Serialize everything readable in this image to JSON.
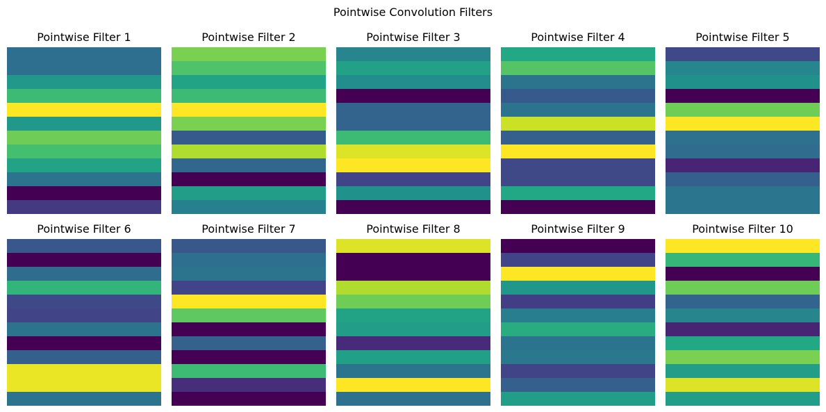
{
  "chart_data": {
    "type": "heatmap",
    "title": "Pointwise Convolution Filters",
    "colormap": "viridis",
    "value_range": [
      0,
      1
    ],
    "axes_visible": false,
    "layout": {
      "rows": 2,
      "cols": 5
    },
    "filters": [
      {
        "title": "Pointwise Filter 1",
        "values": [
          0.36,
          0.36,
          0.53,
          0.68,
          1.0,
          0.53,
          0.78,
          0.7,
          0.58,
          0.38,
          0.0,
          0.17
        ]
      },
      {
        "title": "Pointwise Filter 2",
        "values": [
          0.8,
          0.72,
          0.58,
          0.68,
          1.0,
          0.8,
          0.28,
          0.88,
          0.33,
          0.0,
          0.55,
          0.43
        ]
      },
      {
        "title": "Pointwise Filter 3",
        "values": [
          0.45,
          0.57,
          0.48,
          0.0,
          0.32,
          0.32,
          0.68,
          0.95,
          1.0,
          0.2,
          0.5,
          0.0
        ]
      },
      {
        "title": "Pointwise Filter 4",
        "values": [
          0.6,
          0.73,
          0.38,
          0.28,
          0.38,
          0.92,
          0.3,
          1.0,
          0.22,
          0.22,
          0.6,
          0.0
        ]
      },
      {
        "title": "Pointwise Filter 5",
        "values": [
          0.22,
          0.45,
          0.5,
          0.0,
          0.78,
          1.0,
          0.37,
          0.35,
          0.1,
          0.3,
          0.39,
          0.39
        ]
      },
      {
        "title": "Pointwise Filter 6",
        "values": [
          0.27,
          0.0,
          0.35,
          0.65,
          0.22,
          0.2,
          0.38,
          0.0,
          0.3,
          0.97,
          0.97,
          0.38
        ]
      },
      {
        "title": "Pointwise Filter 7",
        "values": [
          0.27,
          0.36,
          0.38,
          0.2,
          1.0,
          0.75,
          0.0,
          0.31,
          0.0,
          0.68,
          0.13,
          0.0
        ]
      },
      {
        "title": "Pointwise Filter 8",
        "values": [
          0.95,
          0.0,
          0.0,
          0.88,
          0.78,
          0.58,
          0.55,
          0.12,
          0.56,
          0.38,
          1.0,
          0.37
        ]
      },
      {
        "title": "Pointwise Filter 9",
        "values": [
          0.0,
          0.2,
          1.0,
          0.52,
          0.18,
          0.42,
          0.62,
          0.38,
          0.4,
          0.2,
          0.3,
          0.55
        ]
      },
      {
        "title": "Pointwise Filter 10",
        "values": [
          1.0,
          0.66,
          0.0,
          0.78,
          0.32,
          0.45,
          0.1,
          0.6,
          0.8,
          0.55,
          0.95,
          0.55
        ]
      }
    ]
  }
}
